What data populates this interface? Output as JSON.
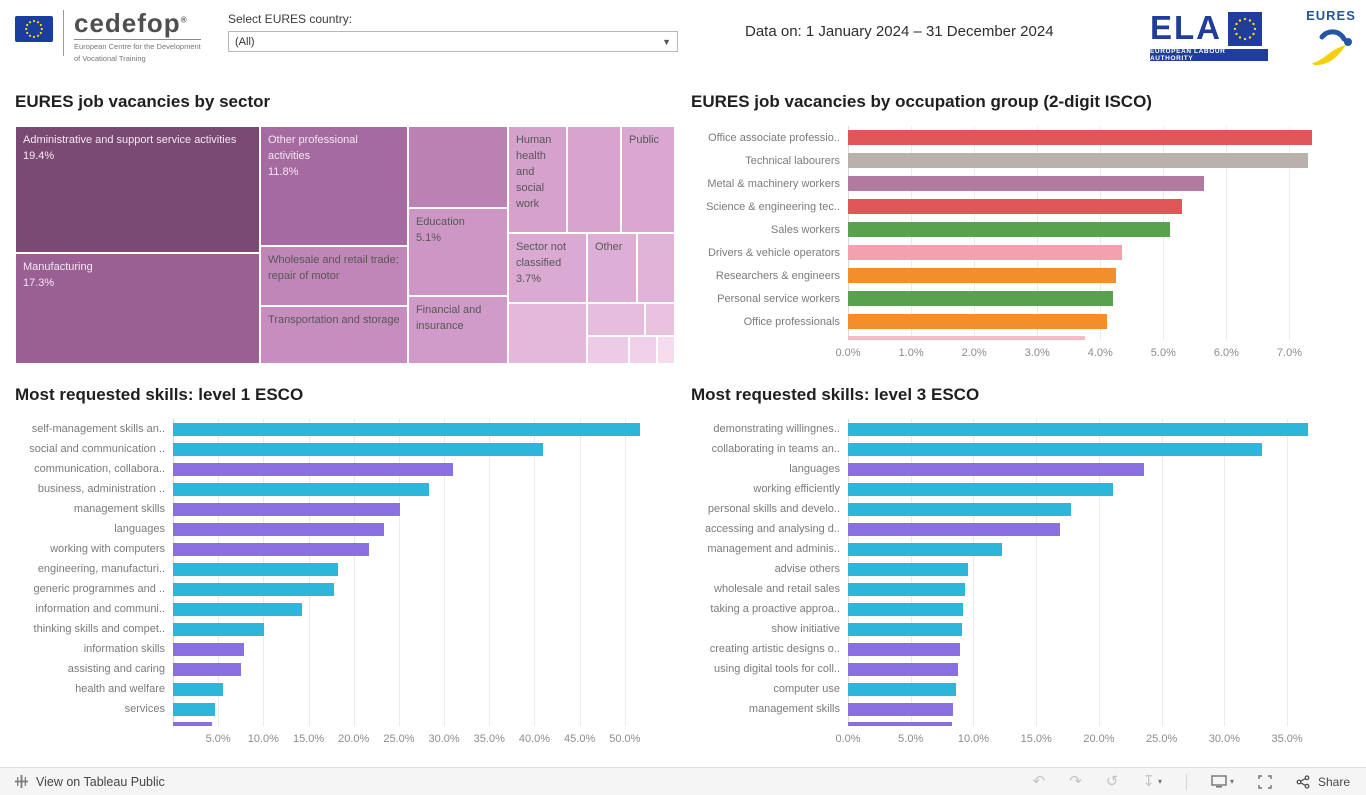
{
  "header": {
    "cedefop": {
      "brand": "cedefop",
      "reg": "®",
      "subtitle1": "European Centre for the Development",
      "subtitle2": "of Vocational Training"
    },
    "country_selector": {
      "label": "Select EURES country:",
      "value": "(All)"
    },
    "data_period": "Data on: 1 January 2024 – 31 December 2024",
    "ela": {
      "text": "ELA",
      "subtitle": "EUROPEAN LABOUR AUTHORITY"
    },
    "eures": {
      "text": "EURES"
    }
  },
  "chart_data": [
    {
      "id": "sector",
      "type": "treemap",
      "title": "EURES job vacancies by sector",
      "tiles": [
        {
          "label": "Administrative and support service activities",
          "value": 19.4,
          "value_label": "19.4%",
          "color": "#7a4a74",
          "text": "light",
          "x": 0,
          "y": 0,
          "w": 37.12,
          "h": 53.36
        },
        {
          "label": "Manufacturing",
          "value": 17.3,
          "value_label": "17.3%",
          "color": "#9b6093",
          "text": "light",
          "x": 0,
          "y": 53.36,
          "w": 37.12,
          "h": 46.64
        },
        {
          "label": "Other professional activities",
          "value": 11.8,
          "value_label": "11.8%",
          "color": "#a56ba0",
          "text": "light",
          "x": 37.12,
          "y": 0,
          "w": 22.42,
          "h": 50.42
        },
        {
          "label": "Wholesale and retail trade; repair of motor",
          "value_label": "",
          "color": "#c086b7",
          "text": "dark",
          "x": 37.12,
          "y": 50.42,
          "w": 22.42,
          "h": 25.21
        },
        {
          "label": "Transportation and storage",
          "value_label": "",
          "color": "#c78dbe",
          "text": "dark",
          "x": 37.12,
          "y": 75.63,
          "w": 22.42,
          "h": 24.37
        },
        {
          "label": "",
          "value_label": "",
          "color": "#bc81b3",
          "text": "dark",
          "x": 59.54,
          "y": 0,
          "w": 15.15,
          "h": 34.45
        },
        {
          "label": "Education",
          "value": 5.1,
          "value_label": "5.1%",
          "color": "#cd96c5",
          "text": "dark",
          "x": 59.54,
          "y": 34.45,
          "w": 15.15,
          "h": 36.98
        },
        {
          "label": "Financial and insurance",
          "value_label": "",
          "color": "#d19bc9",
          "text": "dark",
          "x": 59.54,
          "y": 71.43,
          "w": 15.15,
          "h": 28.57
        },
        {
          "label": "Human health and social work",
          "value_label": "",
          "color": "#d5a1cd",
          "text": "dark",
          "x": 74.69,
          "y": 0,
          "w": 8.94,
          "h": 44.96
        },
        {
          "label": "",
          "value_label": "",
          "color": "#d7a4cf",
          "text": "dark",
          "x": 83.63,
          "y": 0,
          "w": 8.19,
          "h": 44.96
        },
        {
          "label": "Public",
          "value_label": "",
          "color": "#d9a7d1",
          "text": "dark",
          "x": 91.82,
          "y": 0,
          "w": 8.18,
          "h": 44.96
        },
        {
          "label": "Sector not classified",
          "value": 3.7,
          "value_label": "3.7%",
          "color": "#dbaad3",
          "text": "dark",
          "x": 74.69,
          "y": 44.96,
          "w": 11.97,
          "h": 29.41
        },
        {
          "label": "Other",
          "value_label": "",
          "color": "#deafd6",
          "text": "dark",
          "x": 86.66,
          "y": 44.96,
          "w": 7.58,
          "h": 29.41
        },
        {
          "label": "",
          "value_label": "",
          "color": "#e0b3d8",
          "text": "dark",
          "x": 94.24,
          "y": 44.96,
          "w": 5.76,
          "h": 29.41
        },
        {
          "label": "",
          "value_label": "",
          "color": "#e3b8db",
          "text": "dark",
          "x": 74.69,
          "y": 74.37,
          "w": 11.97,
          "h": 25.63
        },
        {
          "label": "",
          "value_label": "",
          "color": "#e6bdde",
          "text": "dark",
          "x": 86.66,
          "y": 74.37,
          "w": 8.79,
          "h": 13.87
        },
        {
          "label": "",
          "value_label": "",
          "color": "#e8c2e0",
          "text": "dark",
          "x": 95.45,
          "y": 74.37,
          "w": 4.55,
          "h": 13.87
        },
        {
          "label": "",
          "value_label": "",
          "color": "#edcae6",
          "text": "dark",
          "x": 86.66,
          "y": 88.24,
          "w": 6.37,
          "h": 11.76
        },
        {
          "label": "",
          "value_label": "",
          "color": "#f0d1e9",
          "text": "dark",
          "x": 93.03,
          "y": 88.24,
          "w": 4.24,
          "h": 11.76
        },
        {
          "label": "",
          "value_label": "",
          "color": "#f5dcef",
          "text": "dark",
          "x": 97.27,
          "y": 88.24,
          "w": 2.73,
          "h": 11.76
        }
      ]
    },
    {
      "id": "occupation",
      "type": "bar",
      "orientation": "horizontal",
      "title": "EURES job vacancies by occupation group (2-digit ISCO)",
      "xlabel": "",
      "xmax": 7.5,
      "grid": true,
      "ticks": [
        {
          "label": "0.0%",
          "value": 0
        },
        {
          "label": "1.0%",
          "value": 1
        },
        {
          "label": "2.0%",
          "value": 2
        },
        {
          "label": "3.0%",
          "value": 3
        },
        {
          "label": "4.0%",
          "value": 4
        },
        {
          "label": "5.0%",
          "value": 5
        },
        {
          "label": "6.0%",
          "value": 6
        },
        {
          "label": "7.0%",
          "value": 7
        }
      ],
      "rows": [
        {
          "label": "Office associate professio..",
          "value": 7.35,
          "color": "#e15759"
        },
        {
          "label": "Technical labourers",
          "value": 7.3,
          "color": "#bab0ac"
        },
        {
          "label": "Metal & machinery workers",
          "value": 5.65,
          "color": "#b07aa1"
        },
        {
          "label": "Science & engineering tec..",
          "value": 5.3,
          "color": "#e15759"
        },
        {
          "label": "Sales workers",
          "value": 5.1,
          "color": "#59a14f"
        },
        {
          "label": "Drivers & vehicle operators",
          "value": 4.35,
          "color": "#f5a0ae"
        },
        {
          "label": "Researchers & engineers",
          "value": 4.25,
          "color": "#f28e2b"
        },
        {
          "label": "Personal service workers",
          "value": 4.2,
          "color": "#59a14f"
        },
        {
          "label": "Office professionals",
          "value": 4.1,
          "color": "#f28e2b"
        },
        {
          "label": "",
          "value": 3.75,
          "color": "#f7bac4",
          "partial": true
        }
      ]
    },
    {
      "id": "skills1",
      "type": "bar",
      "orientation": "horizontal",
      "title": "Most requested skills: level 1 ESCO",
      "xlabel": "",
      "xmax": 54,
      "grid": true,
      "ticks": [
        {
          "label": "5.0%",
          "value": 5
        },
        {
          "label": "10.0%",
          "value": 10
        },
        {
          "label": "15.0%",
          "value": 15
        },
        {
          "label": "20.0%",
          "value": 20
        },
        {
          "label": "25.0%",
          "value": 25
        },
        {
          "label": "30.0%",
          "value": 30
        },
        {
          "label": "35.0%",
          "value": 35
        },
        {
          "label": "40.0%",
          "value": 40
        },
        {
          "label": "45.0%",
          "value": 45
        },
        {
          "label": "50.0%",
          "value": 50
        }
      ],
      "rows": [
        {
          "label": "self-management skills an..",
          "value": 51.7,
          "color": "#2bb7da"
        },
        {
          "label": "social and communication ..",
          "value": 40.9,
          "color": "#2bb7da"
        },
        {
          "label": "communication, collabora..",
          "value": 31.0,
          "color": "#8a6fe2"
        },
        {
          "label": "business, administration ..",
          "value": 28.3,
          "color": "#2bb7da"
        },
        {
          "label": "management skills",
          "value": 25.1,
          "color": "#8a6fe2"
        },
        {
          "label": "languages",
          "value": 23.4,
          "color": "#8a6fe2"
        },
        {
          "label": "working with computers",
          "value": 21.7,
          "color": "#8a6fe2"
        },
        {
          "label": "engineering, manufacturi..",
          "value": 18.3,
          "color": "#2bb7da"
        },
        {
          "label": "generic programmes and ..",
          "value": 17.8,
          "color": "#2bb7da"
        },
        {
          "label": "information and communi..",
          "value": 14.3,
          "color": "#2bb7da"
        },
        {
          "label": "thinking skills and compet..",
          "value": 10.1,
          "color": "#2bb7da"
        },
        {
          "label": "information skills",
          "value": 7.9,
          "color": "#8a6fe2"
        },
        {
          "label": "assisting and caring",
          "value": 7.5,
          "color": "#8a6fe2"
        },
        {
          "label": "health and welfare",
          "value": 5.5,
          "color": "#2bb7da"
        },
        {
          "label": "services",
          "value": 4.6,
          "color": "#2bb7da"
        },
        {
          "label": "",
          "value": 4.3,
          "color": "#8a6fe2",
          "partial": true
        }
      ]
    },
    {
      "id": "skills3",
      "type": "bar",
      "orientation": "horizontal",
      "title": "Most requested skills: level 3 ESCO",
      "xlabel": "",
      "xmax": 37.7,
      "grid": true,
      "ticks": [
        {
          "label": "0.0%",
          "value": 0
        },
        {
          "label": "5.0%",
          "value": 5
        },
        {
          "label": "10.0%",
          "value": 10
        },
        {
          "label": "15.0%",
          "value": 15
        },
        {
          "label": "20.0%",
          "value": 20
        },
        {
          "label": "25.0%",
          "value": 25
        },
        {
          "label": "30.0%",
          "value": 30
        },
        {
          "label": "35.0%",
          "value": 35
        }
      ],
      "rows": [
        {
          "label": "demonstrating willingnes..",
          "value": 36.7,
          "color": "#2bb7da"
        },
        {
          "label": "collaborating in teams an..",
          "value": 33.0,
          "color": "#2bb7da"
        },
        {
          "label": "languages",
          "value": 23.6,
          "color": "#8a6fe2"
        },
        {
          "label": "working efficiently",
          "value": 21.1,
          "color": "#2bb7da"
        },
        {
          "label": "personal skills and develo..",
          "value": 17.8,
          "color": "#2bb7da"
        },
        {
          "label": "accessing and analysing d..",
          "value": 16.9,
          "color": "#8a6fe2"
        },
        {
          "label": "management and adminis..",
          "value": 12.3,
          "color": "#2bb7da"
        },
        {
          "label": "advise others",
          "value": 9.6,
          "color": "#2bb7da"
        },
        {
          "label": "wholesale and retail sales",
          "value": 9.3,
          "color": "#2bb7da"
        },
        {
          "label": "taking a proactive approa..",
          "value": 9.2,
          "color": "#2bb7da"
        },
        {
          "label": "show initiative",
          "value": 9.1,
          "color": "#2bb7da"
        },
        {
          "label": "creating artistic designs o..",
          "value": 8.9,
          "color": "#8a6fe2"
        },
        {
          "label": "using digital tools for coll..",
          "value": 8.8,
          "color": "#8a6fe2"
        },
        {
          "label": "computer use",
          "value": 8.6,
          "color": "#2bb7da"
        },
        {
          "label": "management skills",
          "value": 8.4,
          "color": "#8a6fe2"
        },
        {
          "label": "",
          "value": 8.3,
          "color": "#8a6fe2",
          "partial": true
        }
      ]
    }
  ],
  "footer": {
    "view_text": "View on Tableau Public",
    "share_label": "Share"
  }
}
